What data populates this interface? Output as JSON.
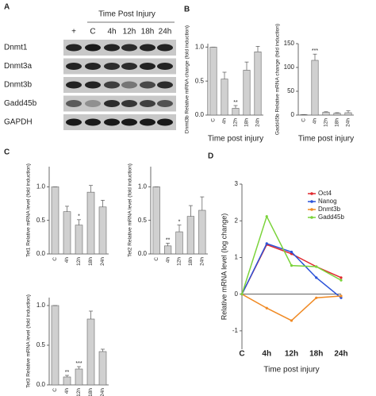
{
  "blot": {
    "panel": "A",
    "title": "Time Post Injury",
    "lanes": [
      "+",
      "C",
      "4h",
      "12h",
      "18h",
      "24h"
    ],
    "rows": [
      "Dnmt1",
      "Dnmt3a",
      "Dnmt3b",
      "Gadd45b",
      "GAPDH"
    ]
  },
  "chart_data": [
    {
      "type": "bar",
      "panel": "B",
      "y_label": "Dnmt3b Relative mRNA change (fold induction)",
      "x_label": "Time post injury",
      "categories": [
        "C",
        "4h",
        "12h",
        "18h",
        "24h"
      ],
      "values": [
        1.0,
        0.53,
        0.1,
        0.66,
        0.93
      ],
      "errors": [
        0.0,
        0.1,
        0.04,
        0.12,
        0.08
      ],
      "significance": [
        null,
        null,
        "**",
        null,
        null
      ],
      "color": "#d0d0d0",
      "ylim": [
        0,
        1.05
      ],
      "yticks": [
        {
          "value": 0,
          "label": "0.0"
        },
        {
          "value": 0.5,
          "label": "0.5"
        },
        {
          "value": 1,
          "label": "1.0"
        }
      ]
    },
    {
      "type": "bar",
      "y_label": "Gadd45b Relative mRNA change (fold induction)",
      "x_label": "Time post injury",
      "categories": [
        "C",
        "4h",
        "12h",
        "18h",
        "24h"
      ],
      "values": [
        1,
        115,
        6,
        4,
        5
      ],
      "errors": [
        0,
        13,
        1,
        1,
        4
      ],
      "significance": [
        null,
        "***",
        null,
        null,
        null
      ],
      "color": "#d0d0d0",
      "ylim": [
        0,
        150
      ],
      "yticks": [
        0,
        50,
        100,
        150
      ]
    },
    {
      "type": "bar",
      "panel": "C",
      "y_label": "Tet1 Relative mRNA level (fold induction)",
      "categories": [
        "C",
        "4h",
        "12h",
        "18h",
        "24h"
      ],
      "values": [
        1.0,
        0.63,
        0.43,
        0.92,
        0.7
      ],
      "errors": [
        0,
        0.08,
        0.08,
        0.1,
        0.1
      ],
      "significance": [
        null,
        null,
        "*",
        null,
        null
      ],
      "color": "#d0d0d0",
      "ylim": [
        0,
        1.3
      ],
      "yticks": [
        {
          "value": 0,
          "label": "0.0"
        },
        {
          "value": 0.5,
          "label": "0.5"
        },
        {
          "value": 1,
          "label": "1.0"
        }
      ]
    },
    {
      "type": "bar",
      "y_label": "Tet2 Relative mRNA level (fold induction)",
      "categories": [
        "C",
        "4h",
        "12h",
        "18h",
        "24h"
      ],
      "values": [
        1.0,
        0.12,
        0.33,
        0.56,
        0.65
      ],
      "errors": [
        0,
        0.04,
        0.1,
        0.16,
        0.2
      ],
      "significance": [
        null,
        "**",
        "*",
        null,
        null
      ],
      "color": "#d0d0d0",
      "ylim": [
        0,
        1.3
      ],
      "yticks": [
        {
          "value": 0,
          "label": "0.0"
        },
        {
          "value": 0.5,
          "label": "0.5"
        },
        {
          "value": 1,
          "label": "1.0"
        }
      ]
    },
    {
      "type": "bar",
      "y_label": "Tet3 Relative mRNA level (fold induction)",
      "categories": [
        "C",
        "4h",
        "12h",
        "18h",
        "24h"
      ],
      "values": [
        1.0,
        0.1,
        0.2,
        0.83,
        0.42
      ],
      "errors": [
        0,
        0.02,
        0.03,
        0.1,
        0.03
      ],
      "significance": [
        null,
        "**",
        "***",
        null,
        null
      ],
      "color": "#d0d0d0",
      "ylim": [
        0,
        1.1
      ],
      "yticks": [
        {
          "value": 0,
          "label": "0.0"
        },
        {
          "value": 0.5,
          "label": "0.5"
        },
        {
          "value": 1,
          "label": "1.0"
        }
      ]
    },
    {
      "type": "line",
      "panel": "D",
      "y_label": "Relative mRNA level (log change)",
      "x_label": "Time post injury",
      "categories": [
        "C",
        "4h",
        "12h",
        "18h",
        "24h"
      ],
      "series": [
        {
          "name": "Oct4",
          "color": "#e0282e",
          "values": [
            0,
            1.35,
            1.1,
            0.75,
            0.45
          ]
        },
        {
          "name": "Nanog",
          "color": "#2a52d8",
          "values": [
            0,
            1.38,
            1.15,
            0.45,
            -0.1
          ]
        },
        {
          "name": "Dnmt3b",
          "color": "#f08a24",
          "values": [
            0,
            -0.38,
            -0.72,
            -0.1,
            -0.05
          ]
        },
        {
          "name": "Gadd45b",
          "color": "#7ad33a",
          "values": [
            0,
            2.12,
            0.78,
            0.75,
            0.38
          ]
        }
      ],
      "ylim": [
        -1.5,
        3
      ],
      "yticks": [
        -1,
        0,
        1,
        2,
        3
      ]
    }
  ]
}
